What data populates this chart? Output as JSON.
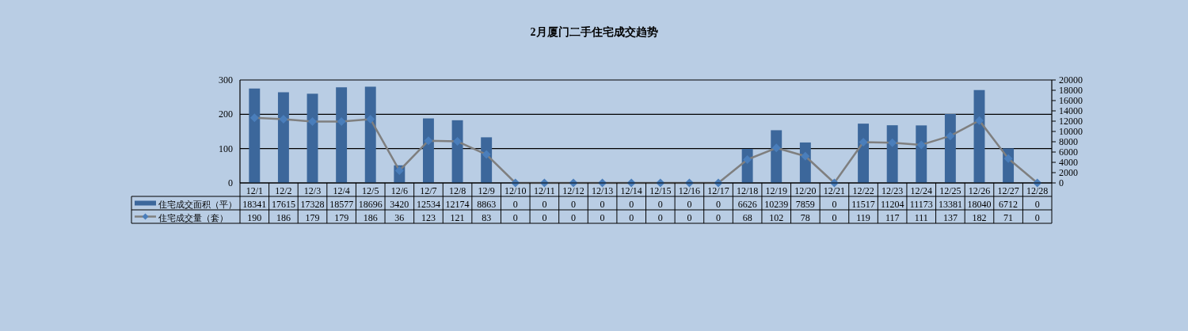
{
  "chart_data": {
    "type": "bar",
    "title": "2月厦门二手住宅成交趋势",
    "categories": [
      "12/1",
      "12/2",
      "12/3",
      "12/4",
      "12/5",
      "12/6",
      "12/7",
      "12/8",
      "12/9",
      "12/10",
      "12/11",
      "12/12",
      "12/13",
      "12/14",
      "12/15",
      "12/16",
      "12/17",
      "12/18",
      "12/19",
      "12/20",
      "12/21",
      "12/22",
      "12/23",
      "12/24",
      "12/25",
      "12/26",
      "12/27",
      "12/28"
    ],
    "series": [
      {
        "name": "住宅成交面积（平）",
        "axis": "y2",
        "color": "#3c679b",
        "values": [
          18341,
          17615,
          17328,
          18577,
          18696,
          3420,
          12534,
          12174,
          8863,
          0,
          0,
          0,
          0,
          0,
          0,
          0,
          0,
          6626,
          10239,
          7859,
          0,
          11517,
          11204,
          11173,
          13381,
          18040,
          6712,
          0
        ]
      },
      {
        "name": "住宅成交量（套）",
        "type": "line",
        "color": "#7f7f7f",
        "colors": [
          "#4a7ebb",
          "#4a7ebb",
          "#4a7ebb",
          "#4a7ebb",
          "#4a7ebb",
          "#4a7ebb",
          "#4a7ebb",
          "#4a7ebb",
          "#4a7ebb",
          "#4a7ebb",
          "#4a7ebb",
          "#4a7ebb",
          "#4a7ebb",
          "#4a7ebb",
          "#4a7ebb",
          "#4a7ebb",
          "#4a7ebb",
          "#4a7ebb",
          "#4a7ebb",
          "#4a7ebb",
          "#4a7ebb",
          "#4a7ebb",
          "#4a7ebb",
          "#4a7ebb",
          "#4a7ebb",
          "#4a7ebb",
          "#4a7ebb",
          "#4a7ebb"
        ],
        "values": [
          190,
          186,
          179,
          179,
          186,
          36,
          123,
          121,
          83,
          0,
          0,
          0,
          0,
          0,
          0,
          0,
          0,
          68,
          102,
          78,
          0,
          119,
          117,
          111,
          137,
          182,
          71,
          0
        ]
      }
    ],
    "ylim": [
      0,
      300
    ],
    "yticks": [
      0,
      100,
      200,
      300
    ],
    "y2lim": [
      0,
      20000
    ],
    "y2ticks": [
      0,
      2000,
      4000,
      6000,
      8000,
      10000,
      12000,
      14000,
      16000,
      18000,
      20000
    ],
    "grid": "y",
    "legend": "bottom",
    "data_labels": true,
    "marker": "diamond",
    "line_style": "solid"
  }
}
